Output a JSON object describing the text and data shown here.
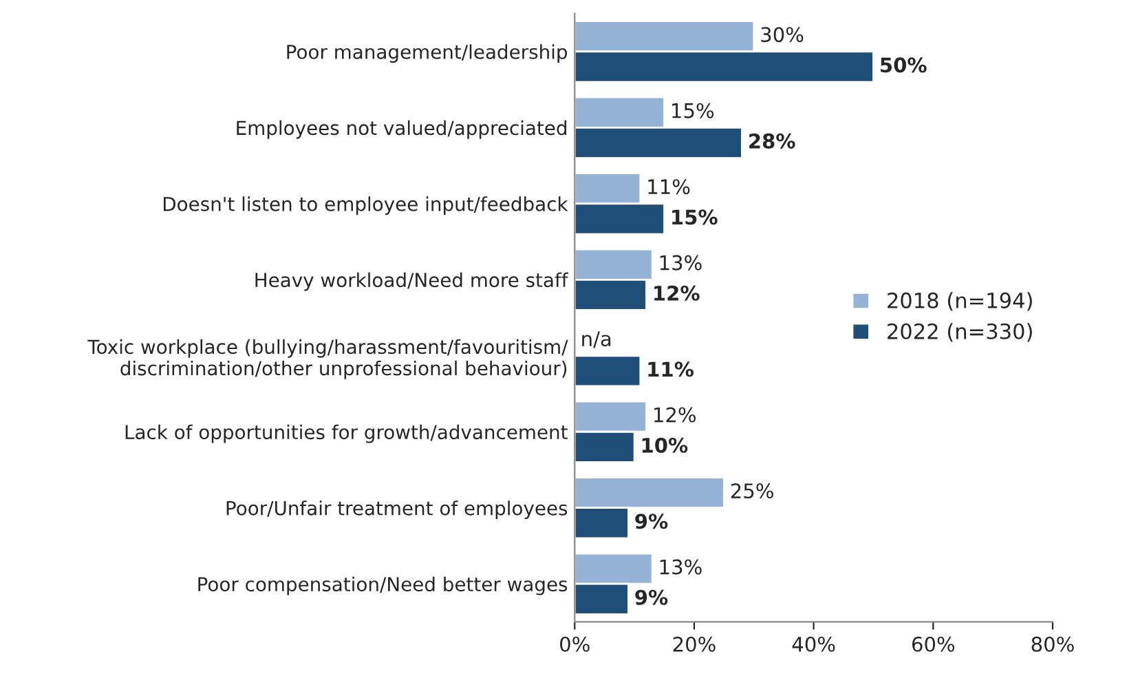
{
  "chart_data": {
    "type": "bar",
    "orientation": "horizontal",
    "categories": [
      "Poor management/leadership",
      "Employees not valued/appreciated",
      "Doesn't listen to employee input/feedback",
      "Heavy workload/Need more staff",
      "Toxic workplace (bullying/harassment/favouritism/\ndiscrimination/other unprofessional behaviour)",
      "Lack of opportunities for growth/advancement",
      "Poor/Unfair treatment of employees",
      "Poor compensation/Need better wages"
    ],
    "series": [
      {
        "name": "2018 (n=194)",
        "color": "#95b3d7",
        "values": [
          30,
          15,
          11,
          13,
          null,
          12,
          25,
          13
        ],
        "value_labels": [
          "30%",
          "15%",
          "11%",
          "13%",
          "n/a",
          "12%",
          "25%",
          "13%"
        ]
      },
      {
        "name": "2022 (n=330)",
        "color": "#1f4e79",
        "values": [
          50,
          28,
          15,
          12,
          11,
          10,
          9,
          9
        ],
        "value_labels": [
          "50%",
          "28%",
          "15%",
          "12%",
          "11%",
          "10%",
          "9%",
          "9%"
        ]
      }
    ],
    "xlim": [
      0,
      80
    ],
    "xticks": [
      {
        "value": 0,
        "label": "0%"
      },
      {
        "value": 20,
        "label": "20%"
      },
      {
        "value": 40,
        "label": "40%"
      },
      {
        "value": 60,
        "label": "60%"
      },
      {
        "value": 80,
        "label": "80%"
      }
    ],
    "legend": "right",
    "grid": false
  }
}
